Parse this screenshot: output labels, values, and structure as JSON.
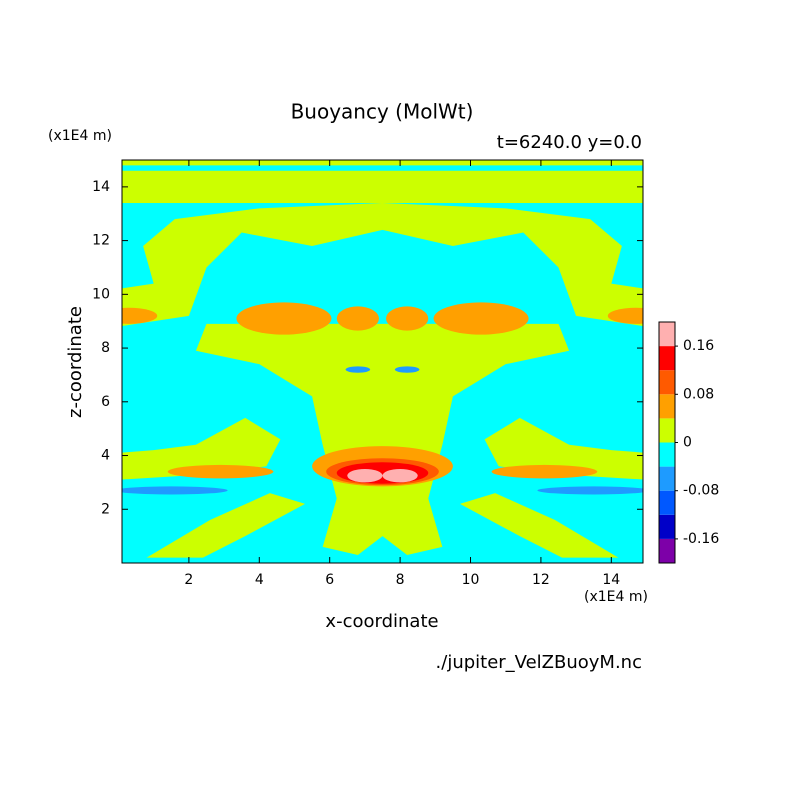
{
  "chart_data": {
    "type": "contour",
    "title": "Buoyancy (MolWt)",
    "subtitle": "t=6240.0 y=0.0",
    "x_label": "x-coordinate",
    "y_label": "z-coordinate",
    "x_unit": "(x1E4 m)",
    "y_unit": "(x1E4 m)",
    "source": "./jupiter_VelZBuoyM.nc",
    "xlim": [
      0.1,
      14.9
    ],
    "xticks": [
      2,
      4,
      6,
      8,
      10,
      12,
      14
    ],
    "ylim": [
      0,
      15
    ],
    "yticks": [
      2,
      4,
      6,
      8,
      10,
      12,
      14
    ],
    "colorbar": {
      "levels": [
        -0.2,
        -0.16,
        -0.12,
        -0.08,
        -0.04,
        0,
        0.04,
        0.08,
        0.12,
        0.16,
        0.2
      ],
      "colors": [
        "#7d00a8",
        "#0000c8",
        "#0058ff",
        "#1e9bff",
        "#00ffff",
        "#ccff00",
        "#ffa000",
        "#ff5a00",
        "#ff0000",
        "#ffb0b0"
      ],
      "ticks": [
        -0.16,
        -0.08,
        0,
        0.08,
        0.16
      ]
    }
  }
}
